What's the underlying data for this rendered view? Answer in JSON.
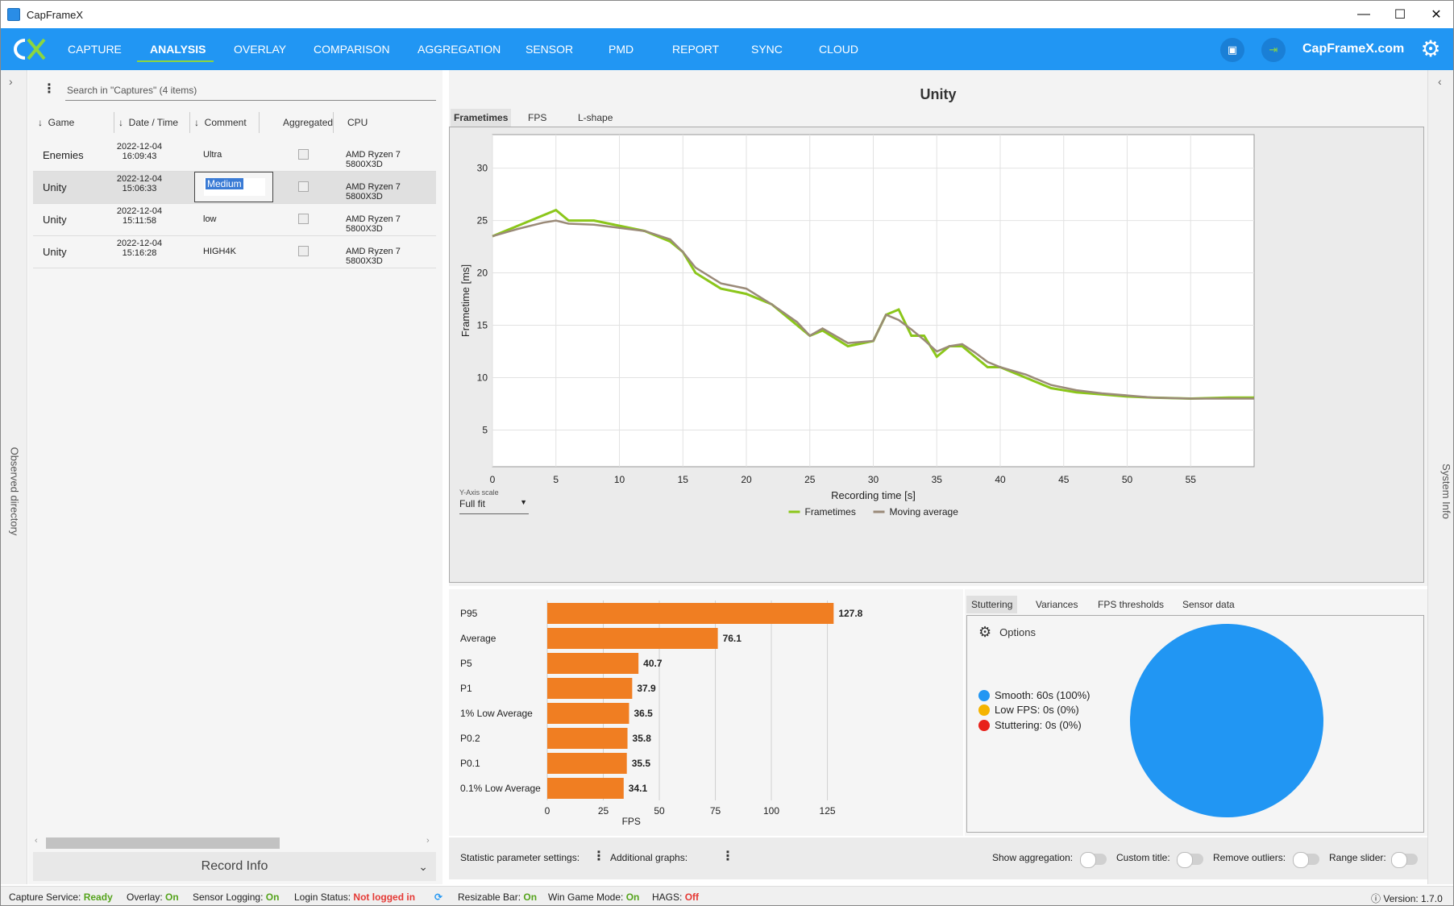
{
  "window": {
    "title": "CapFrameX",
    "minimize": "—",
    "maximize": "☐",
    "close": "✕"
  },
  "nav": {
    "items": [
      "CAPTURE",
      "ANALYSIS",
      "OVERLAY",
      "COMPARISON",
      "AGGREGATION",
      "SENSOR",
      "PMD",
      "REPORT",
      "SYNC",
      "CLOUD"
    ],
    "active": "ANALYSIS",
    "site": "CapFrameX.com"
  },
  "left": {
    "search_placeholder": "Search in \"Captures\" (4 items)",
    "observed": "Observed directory",
    "record_info": "Record Info",
    "columns": {
      "game": "Game",
      "date": "Date / Time",
      "comment": "Comment",
      "aggregated": "Aggregated",
      "cpu": "CPU"
    },
    "rows": [
      {
        "game": "Enemies",
        "date": "2022-12-04",
        "time": "16:09:43",
        "comment": "Ultra",
        "cpu": "AMD Ryzen 7 5800X3D"
      },
      {
        "game": "Unity",
        "date": "2022-12-04",
        "time": "15:06:33",
        "comment": "Medium",
        "cpu": "AMD Ryzen 7 5800X3D"
      },
      {
        "game": "Unity",
        "date": "2022-12-04",
        "time": "15:11:58",
        "comment": "low",
        "cpu": "AMD Ryzen 7 5800X3D"
      },
      {
        "game": "Unity",
        "date": "2022-12-04",
        "time": "15:16:28",
        "comment": "HIGH4K",
        "cpu": "AMD Ryzen 7 5800X3D"
      }
    ]
  },
  "right": {
    "system_info": "System Info"
  },
  "graph": {
    "title": "Unity",
    "tabs": [
      "Frametimes",
      "FPS",
      "L-shape"
    ],
    "yaxis_scale_label": "Y-Axis scale",
    "yaxis_scale_value": "Full fit"
  },
  "chart_data": [
    {
      "type": "line",
      "title": "Unity",
      "xlabel": "Recording time [s]",
      "ylabel": "Frametime [ms]",
      "xlim": [
        0,
        60
      ],
      "ylim": [
        1.5,
        33.2
      ],
      "xticks": [
        0,
        5,
        10,
        15,
        20,
        25,
        30,
        35,
        40,
        45,
        50,
        55
      ],
      "yticks": [
        5,
        10,
        15,
        20,
        25,
        30
      ],
      "series": [
        {
          "name": "Frametimes",
          "color": "#8bc61a",
          "x": [
            0,
            2,
            4,
            5,
            6,
            8,
            10,
            12,
            14,
            15,
            16,
            18,
            20,
            22,
            24,
            25,
            26,
            28,
            30,
            31,
            32,
            33,
            34,
            35,
            36,
            37,
            38,
            39,
            40,
            42,
            44,
            46,
            48,
            50,
            52,
            55,
            58,
            60
          ],
          "y": [
            23.5,
            24.5,
            25.5,
            26,
            25,
            25,
            24.5,
            24,
            23,
            22,
            20,
            18.5,
            18,
            17,
            15,
            14,
            14.5,
            13,
            13.5,
            16,
            16.5,
            14,
            14,
            12,
            13,
            13,
            12,
            11,
            11,
            10,
            9,
            8.6,
            8.4,
            8.2,
            8.1,
            8.0,
            8.1,
            8.1
          ]
        },
        {
          "name": "Moving average",
          "color": "#9a8a78",
          "x": [
            0,
            2,
            4,
            5,
            6,
            8,
            10,
            12,
            14,
            15,
            16,
            18,
            20,
            22,
            24,
            25,
            26,
            28,
            30,
            31,
            32,
            33,
            34,
            35,
            36,
            37,
            38,
            39,
            40,
            42,
            44,
            46,
            48,
            50,
            52,
            55,
            58,
            60
          ],
          "y": [
            23.5,
            24.2,
            24.8,
            25,
            24.7,
            24.6,
            24.3,
            24,
            23.2,
            22,
            20.5,
            19,
            18.5,
            17,
            15.3,
            14,
            14.7,
            13.3,
            13.5,
            16,
            15.5,
            14.6,
            13.6,
            12.5,
            13,
            13.2,
            12.4,
            11.5,
            11,
            10.3,
            9.3,
            8.8,
            8.5,
            8.3,
            8.1,
            8.0,
            8.0,
            8.0
          ]
        }
      ]
    },
    {
      "type": "bar",
      "orientation": "horizontal",
      "xlabel": "FPS",
      "xlim": [
        0,
        132
      ],
      "xticks": [
        0,
        25,
        50,
        75,
        100,
        125
      ],
      "categories": [
        "P95",
        "Average",
        "P5",
        "P1",
        "1% Low Average",
        "P0.2",
        "P0.1",
        "0.1% Low Average"
      ],
      "values": [
        127.8,
        76.1,
        40.7,
        37.9,
        36.5,
        35.8,
        35.5,
        34.1
      ],
      "color": "#f07e22"
    },
    {
      "type": "pie",
      "categories": [
        "Smooth",
        "Low FPS",
        "Stuttering"
      ],
      "values": [
        100,
        0,
        0
      ],
      "colors": [
        "#2196f3",
        "#f5b400",
        "#e8221b"
      ]
    }
  ],
  "stutter": {
    "tabs": [
      "Stuttering",
      "Variances",
      "FPS thresholds",
      "Sensor data"
    ],
    "options": "Options",
    "legend": [
      "Smooth:  60s (100%)",
      "Low FPS:  0s (0%)",
      "Stuttering:  0s (0%)"
    ]
  },
  "bottom": {
    "stat_settings": "Statistic parameter settings:",
    "additional_graphs": "Additional graphs:",
    "show_aggregation": "Show aggregation:",
    "custom_title": "Custom title:",
    "remove_outliers": "Remove outliers:",
    "range_slider": "Range slider:"
  },
  "status": {
    "capture_service": "Capture Service:",
    "capture_service_val": "Ready",
    "overlay": "Overlay:",
    "overlay_val": "On",
    "sensor_logging": "Sensor Logging:",
    "sensor_logging_val": "On",
    "login_status": "Login Status:",
    "login_status_val": "Not logged in",
    "resizable_bar": "Resizable Bar:",
    "resizable_bar_val": "On",
    "win_game_mode": "Win Game Mode:",
    "win_game_mode_val": "On",
    "hags": "HAGS:",
    "hags_val": "Off",
    "version": "Version:  1.7.0"
  }
}
